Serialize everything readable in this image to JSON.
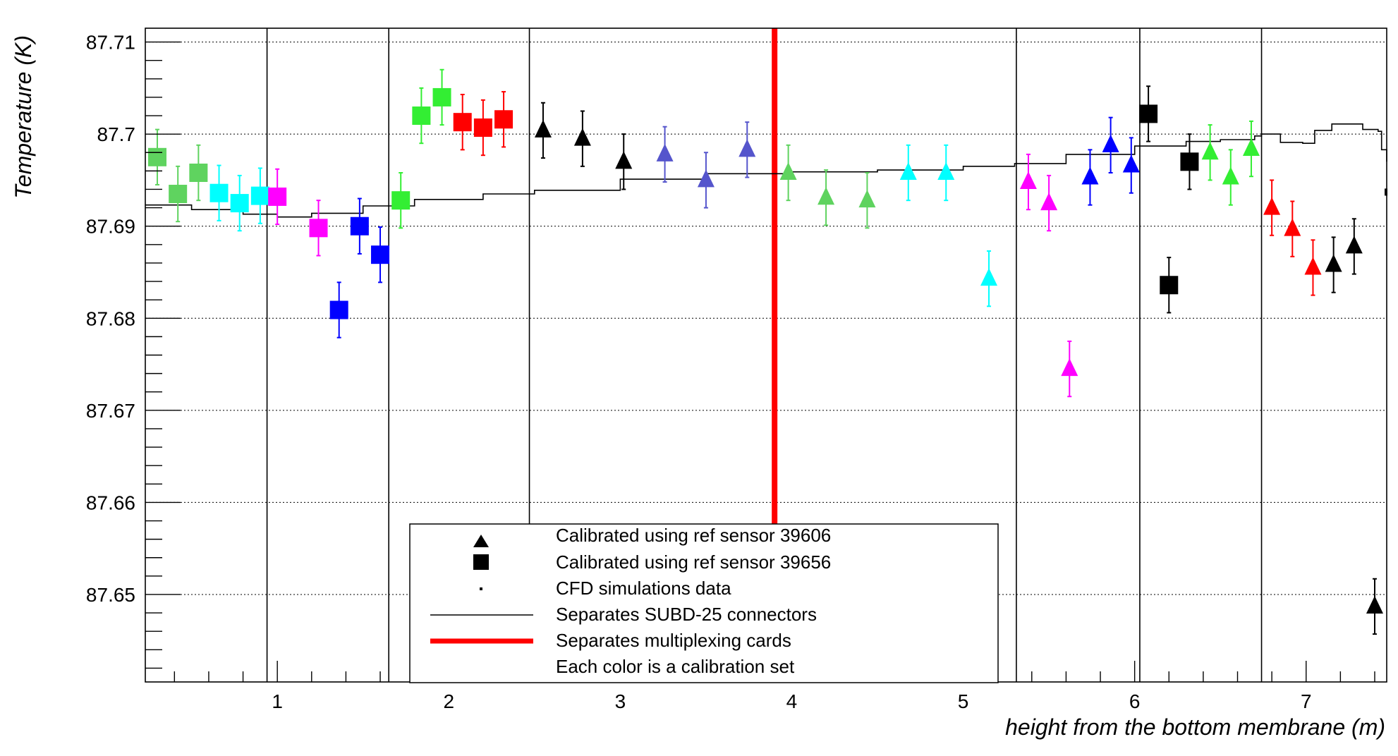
{
  "chart_data": {
    "type": "scatter",
    "ylabel": "Temperature (K)",
    "xlabel": "height from the bottom membrane (m)",
    "xlim": [
      0.23,
      7.47
    ],
    "ylim": [
      87.6405,
      87.7115
    ],
    "x_ticks": [
      1,
      2,
      3,
      4,
      5,
      6,
      7
    ],
    "y_ticks": [
      87.65,
      87.66,
      87.67,
      87.68,
      87.69,
      87.7,
      87.71
    ],
    "grid": "horizontal dotted",
    "colors": {
      "light_green": "#5fd35f",
      "green": "#33ee33",
      "cyan": "#00ffff",
      "magenta": "#ff00ff",
      "blue": "#0000ff",
      "red": "#ff0000",
      "black": "#000000",
      "slate_blue": "#5555cc",
      "separator_red": "#ff0000"
    },
    "connector_separators_x": [
      0.94,
      1.65,
      2.47,
      5.31,
      6.03,
      6.74
    ],
    "card_separator_x": 3.9,
    "legend": {
      "position": "bottom-center",
      "entries": [
        {
          "marker": "triangle",
          "label": "Calibrated using ref sensor 39606"
        },
        {
          "marker": "square",
          "label": "Calibrated using ref sensor 39656"
        },
        {
          "marker": "dot",
          "label": "CFD simulations data"
        },
        {
          "marker": "line-black",
          "label": "Separates SUBD-25 connectors"
        },
        {
          "marker": "line-red",
          "label": "Separates multiplexing cards"
        },
        {
          "marker": "none",
          "label": "Each color is a calibration set"
        }
      ]
    },
    "series": [
      {
        "marker": "square",
        "points": [
          {
            "x": 0.3,
            "y": 87.6975,
            "err": 0.003,
            "color": "light_green"
          },
          {
            "x": 0.42,
            "y": 87.6935,
            "err": 0.003,
            "color": "light_green"
          },
          {
            "x": 0.54,
            "y": 87.6958,
            "err": 0.003,
            "color": "light_green"
          },
          {
            "x": 0.66,
            "y": 87.6936,
            "err": 0.003,
            "color": "cyan"
          },
          {
            "x": 0.78,
            "y": 87.6925,
            "err": 0.003,
            "color": "cyan"
          },
          {
            "x": 0.9,
            "y": 87.6933,
            "err": 0.003,
            "color": "cyan"
          },
          {
            "x": 1.0,
            "y": 87.6932,
            "err": 0.003,
            "color": "magenta"
          },
          {
            "x": 1.24,
            "y": 87.6898,
            "err": 0.003,
            "color": "magenta"
          },
          {
            "x": 1.36,
            "y": 87.6809,
            "err": 0.003,
            "color": "blue"
          },
          {
            "x": 1.48,
            "y": 87.69,
            "err": 0.003,
            "color": "blue"
          },
          {
            "x": 1.6,
            "y": 87.6869,
            "err": 0.003,
            "color": "blue"
          },
          {
            "x": 1.72,
            "y": 87.6928,
            "err": 0.003,
            "color": "green"
          },
          {
            "x": 1.84,
            "y": 87.702,
            "err": 0.003,
            "color": "green"
          },
          {
            "x": 1.96,
            "y": 87.704,
            "err": 0.003,
            "color": "green"
          },
          {
            "x": 2.08,
            "y": 87.7013,
            "err": 0.003,
            "color": "red"
          },
          {
            "x": 2.2,
            "y": 87.7007,
            "err": 0.003,
            "color": "red"
          },
          {
            "x": 2.32,
            "y": 87.7016,
            "err": 0.003,
            "color": "red"
          },
          {
            "x": 6.08,
            "y": 87.7022,
            "err": 0.003,
            "color": "black"
          },
          {
            "x": 6.2,
            "y": 87.6836,
            "err": 0.003,
            "color": "black"
          },
          {
            "x": 6.32,
            "y": 87.697,
            "err": 0.003,
            "color": "black"
          }
        ]
      },
      {
        "marker": "triangle",
        "points": [
          {
            "x": 2.55,
            "y": 87.7004,
            "err": 0.003,
            "color": "black"
          },
          {
            "x": 2.78,
            "y": 87.6995,
            "err": 0.003,
            "color": "black"
          },
          {
            "x": 3.02,
            "y": 87.697,
            "err": 0.003,
            "color": "black"
          },
          {
            "x": 3.26,
            "y": 87.6978,
            "err": 0.003,
            "color": "slate_blue"
          },
          {
            "x": 3.5,
            "y": 87.695,
            "err": 0.003,
            "color": "slate_blue"
          },
          {
            "x": 3.74,
            "y": 87.6983,
            "err": 0.003,
            "color": "slate_blue"
          },
          {
            "x": 3.98,
            "y": 87.6958,
            "err": 0.003,
            "color": "light_green"
          },
          {
            "x": 4.2,
            "y": 87.6931,
            "err": 0.003,
            "color": "light_green"
          },
          {
            "x": 4.44,
            "y": 87.6928,
            "err": 0.003,
            "color": "light_green"
          },
          {
            "x": 4.68,
            "y": 87.6958,
            "err": 0.003,
            "color": "cyan"
          },
          {
            "x": 4.9,
            "y": 87.6958,
            "err": 0.003,
            "color": "cyan"
          },
          {
            "x": 5.15,
            "y": 87.6843,
            "err": 0.003,
            "color": "cyan"
          },
          {
            "x": 5.38,
            "y": 87.6948,
            "err": 0.003,
            "color": "magenta"
          },
          {
            "x": 5.5,
            "y": 87.6925,
            "err": 0.003,
            "color": "magenta"
          },
          {
            "x": 5.62,
            "y": 87.6745,
            "err": 0.003,
            "color": "magenta"
          },
          {
            "x": 5.74,
            "y": 87.6953,
            "err": 0.003,
            "color": "blue"
          },
          {
            "x": 5.86,
            "y": 87.6988,
            "err": 0.003,
            "color": "blue"
          },
          {
            "x": 5.98,
            "y": 87.6966,
            "err": 0.003,
            "color": "blue"
          },
          {
            "x": 6.44,
            "y": 87.698,
            "err": 0.003,
            "color": "green"
          },
          {
            "x": 6.56,
            "y": 87.6953,
            "err": 0.003,
            "color": "green"
          },
          {
            "x": 6.68,
            "y": 87.6984,
            "err": 0.003,
            "color": "green"
          },
          {
            "x": 6.8,
            "y": 87.692,
            "err": 0.003,
            "color": "red"
          },
          {
            "x": 6.92,
            "y": 87.6897,
            "err": 0.003,
            "color": "red"
          },
          {
            "x": 7.04,
            "y": 87.6855,
            "err": 0.003,
            "color": "red"
          },
          {
            "x": 7.16,
            "y": 87.6858,
            "err": 0.003,
            "color": "black"
          },
          {
            "x": 7.28,
            "y": 87.6878,
            "err": 0.003,
            "color": "black"
          },
          {
            "x": 7.4,
            "y": 87.6487,
            "err": 0.003,
            "color": "black"
          }
        ]
      }
    ],
    "cfd_line": [
      [
        0.23,
        87.6923
      ],
      [
        0.5,
        87.6918
      ],
      [
        0.8,
        87.6913
      ],
      [
        1.0,
        87.691
      ],
      [
        1.2,
        87.6914
      ],
      [
        1.5,
        87.6922
      ],
      [
        1.8,
        87.6929
      ],
      [
        2.2,
        87.6935
      ],
      [
        2.5,
        87.6939
      ],
      [
        3.0,
        87.6951
      ],
      [
        3.5,
        87.6957
      ],
      [
        4.0,
        87.6959
      ],
      [
        4.5,
        87.6961
      ],
      [
        5.0,
        87.6965
      ],
      [
        5.3,
        87.6968
      ],
      [
        5.6,
        87.6978
      ],
      [
        6.0,
        87.6987
      ],
      [
        6.3,
        87.6992
      ],
      [
        6.5,
        87.6994
      ],
      [
        6.7,
        87.6998
      ],
      [
        6.74,
        87.7
      ],
      [
        6.85,
        87.6991
      ],
      [
        6.98,
        87.699
      ],
      [
        7.05,
        87.7004
      ],
      [
        7.15,
        87.7011
      ],
      [
        7.27,
        87.7011
      ],
      [
        7.33,
        87.7005
      ],
      [
        7.42,
        87.7003
      ],
      [
        7.44,
        87.6983
      ],
      [
        7.47,
        87.697
      ]
    ],
    "cfd_edge_point": {
      "x": 7.47,
      "y": 87.6937
    }
  }
}
